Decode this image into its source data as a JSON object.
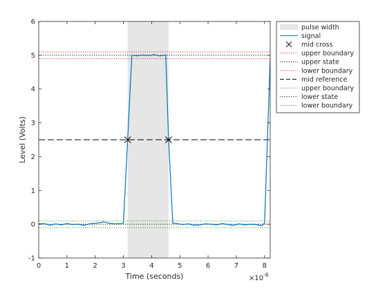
{
  "chart_data": {
    "type": "line",
    "xlabel": "Time (seconds)",
    "ylabel": "Level (Volts)",
    "x_exponent_label": "×10",
    "x_exponent_power": "-6",
    "xlim": [
      0,
      8.2
    ],
    "ylim": [
      -1,
      6
    ],
    "xticks": [
      "0",
      "1",
      "2",
      "3",
      "4",
      "5",
      "6",
      "7",
      "8"
    ],
    "yticks": [
      "-1",
      "0",
      "1",
      "2",
      "3",
      "4",
      "5",
      "6"
    ],
    "grid": false,
    "legend_position": "top-right (outside)",
    "colors": {
      "signal": "#0072BD",
      "upper_band": "#d62728",
      "lower_band": "#2ca02c",
      "state": "#000000",
      "pulse_fill": "#e6e6e6"
    },
    "series": [
      {
        "name": "signal",
        "x": [
          0,
          0.2,
          0.4,
          0.6,
          0.8,
          1.0,
          1.2,
          1.4,
          1.6,
          1.8,
          2.0,
          2.2,
          2.3,
          2.5,
          2.7,
          2.9,
          3.0,
          3.15,
          3.3,
          3.5,
          3.7,
          3.9,
          4.1,
          4.3,
          4.5,
          4.6,
          4.75,
          4.9,
          5.1,
          5.3,
          5.5,
          5.7,
          5.9,
          6.1,
          6.3,
          6.5,
          6.7,
          6.9,
          7.1,
          7.3,
          7.5,
          7.7,
          7.9,
          8.0,
          8.2
        ],
        "y": [
          0.01,
          0.02,
          -0.03,
          0.01,
          -0.02,
          0.02,
          -0.01,
          0.0,
          -0.03,
          0.01,
          0.03,
          0.05,
          0.07,
          0.03,
          0.01,
          0.02,
          0.03,
          2.5,
          5.0,
          4.98,
          5.01,
          4.99,
          5.02,
          4.98,
          5.01,
          2.5,
          0.03,
          0.02,
          -0.01,
          0.01,
          -0.03,
          -0.02,
          0.01,
          0.0,
          -0.02,
          0.02,
          -0.01,
          -0.03,
          0.01,
          -0.02,
          0.0,
          -0.01,
          -0.04,
          0.03,
          4.9
        ]
      }
    ],
    "pulse_width": {
      "name": "pulse width",
      "x_start": 3.15,
      "x_end": 4.6
    },
    "mid_cross": {
      "name": "mid cross",
      "points": [
        [
          3.15,
          2.5
        ],
        [
          4.6,
          2.5
        ]
      ]
    },
    "reference_lines": [
      {
        "name": "upper boundary",
        "y": 5.1,
        "style": "dotted",
        "color": "#d62728"
      },
      {
        "name": "upper state",
        "y": 5.0,
        "style": "dotted",
        "color": "#000000"
      },
      {
        "name": "lower boundary",
        "y": 4.9,
        "style": "dotted",
        "color": "#d62728"
      },
      {
        "name": "mid reference",
        "y": 2.5,
        "style": "dashed",
        "color": "#000000"
      },
      {
        "name": "upper boundary",
        "y": 0.1,
        "style": "dotted",
        "color": "#2ca02c"
      },
      {
        "name": "lower state",
        "y": 0.0,
        "style": "dotted",
        "color": "#000000"
      },
      {
        "name": "lower boundary",
        "y": -0.1,
        "style": "dotted",
        "color": "#2ca02c"
      }
    ],
    "legend": [
      {
        "label": "pulse width",
        "kind": "patch",
        "color": "#e6e6e6"
      },
      {
        "label": "signal",
        "kind": "line",
        "style": "solid",
        "color": "#0072BD"
      },
      {
        "label": "mid cross",
        "kind": "marker",
        "color": "#000000"
      },
      {
        "label": "upper boundary",
        "kind": "line",
        "style": "dotted",
        "color": "#d62728"
      },
      {
        "label": "upper state",
        "kind": "line",
        "style": "dotted",
        "color": "#000000"
      },
      {
        "label": "lower boundary",
        "kind": "line",
        "style": "dotted",
        "color": "#d62728"
      },
      {
        "label": "mid reference",
        "kind": "line",
        "style": "dashed",
        "color": "#000000"
      },
      {
        "label": "upper boundary",
        "kind": "line",
        "style": "dotted",
        "color": "#2ca02c"
      },
      {
        "label": "lower state",
        "kind": "line",
        "style": "dotted",
        "color": "#000000"
      },
      {
        "label": "lower boundary",
        "kind": "line",
        "style": "dotted",
        "color": "#2ca02c"
      }
    ]
  }
}
